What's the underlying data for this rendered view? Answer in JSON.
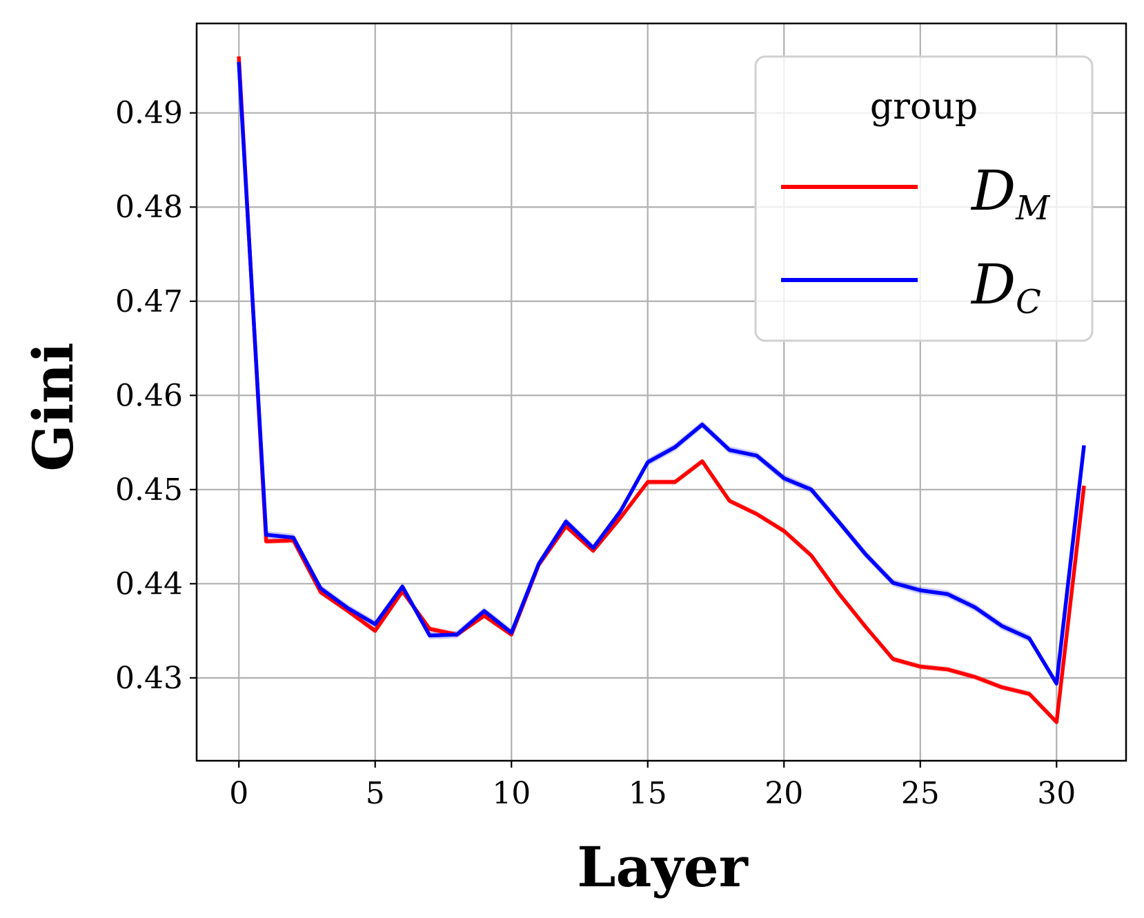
{
  "chart_data": {
    "type": "line",
    "xlabel": "Layer",
    "ylabel": "Gini",
    "xlim": [
      -1.55,
      32.55
    ],
    "ylim": [
      0.4212,
      0.4995
    ],
    "xticks": [
      0,
      5,
      10,
      15,
      20,
      25,
      30
    ],
    "xtick_labels": [
      "0",
      "5",
      "10",
      "15",
      "20",
      "25",
      "30"
    ],
    "yticks": [
      0.43,
      0.44,
      0.45,
      0.46,
      0.47,
      0.48,
      0.49
    ],
    "ytick_labels": [
      "0.43",
      "0.44",
      "0.45",
      "0.46",
      "0.47",
      "0.48",
      "0.49"
    ],
    "grid": true,
    "legend": {
      "title": "group",
      "placement": "upper right",
      "entries": [
        {
          "main": "D",
          "sub": "M",
          "color": "#ff0000"
        },
        {
          "main": "D",
          "sub": "C",
          "color": "#0000ff"
        }
      ]
    },
    "x": [
      0,
      1,
      2,
      3,
      4,
      5,
      6,
      7,
      8,
      9,
      10,
      11,
      12,
      13,
      14,
      15,
      16,
      17,
      18,
      19,
      20,
      21,
      22,
      23,
      24,
      25,
      26,
      27,
      28,
      29,
      30,
      31
    ],
    "series": [
      {
        "key": "D_M",
        "color": "#ff0000",
        "band": 0.0003,
        "values": [
          0.4958,
          0.4445,
          0.4446,
          0.4391,
          0.4371,
          0.435,
          0.4392,
          0.4352,
          0.4346,
          0.4366,
          0.4346,
          0.442,
          0.4461,
          0.4435,
          0.447,
          0.4508,
          0.4508,
          0.453,
          0.4488,
          0.4474,
          0.4456,
          0.443,
          0.439,
          0.4354,
          0.432,
          0.4312,
          0.4309,
          0.4301,
          0.429,
          0.4283,
          0.4253,
          0.4502
        ]
      },
      {
        "key": "D_C",
        "color": "#0000ff",
        "band": 0.0004,
        "values": [
          0.4952,
          0.4452,
          0.4449,
          0.4395,
          0.4374,
          0.4357,
          0.4397,
          0.4345,
          0.4346,
          0.4371,
          0.4348,
          0.4421,
          0.4466,
          0.4438,
          0.4477,
          0.4529,
          0.4545,
          0.4569,
          0.4542,
          0.4536,
          0.4512,
          0.45,
          0.4466,
          0.4431,
          0.4401,
          0.4393,
          0.4389,
          0.4375,
          0.4355,
          0.4342,
          0.4294,
          0.4545
        ]
      }
    ]
  }
}
